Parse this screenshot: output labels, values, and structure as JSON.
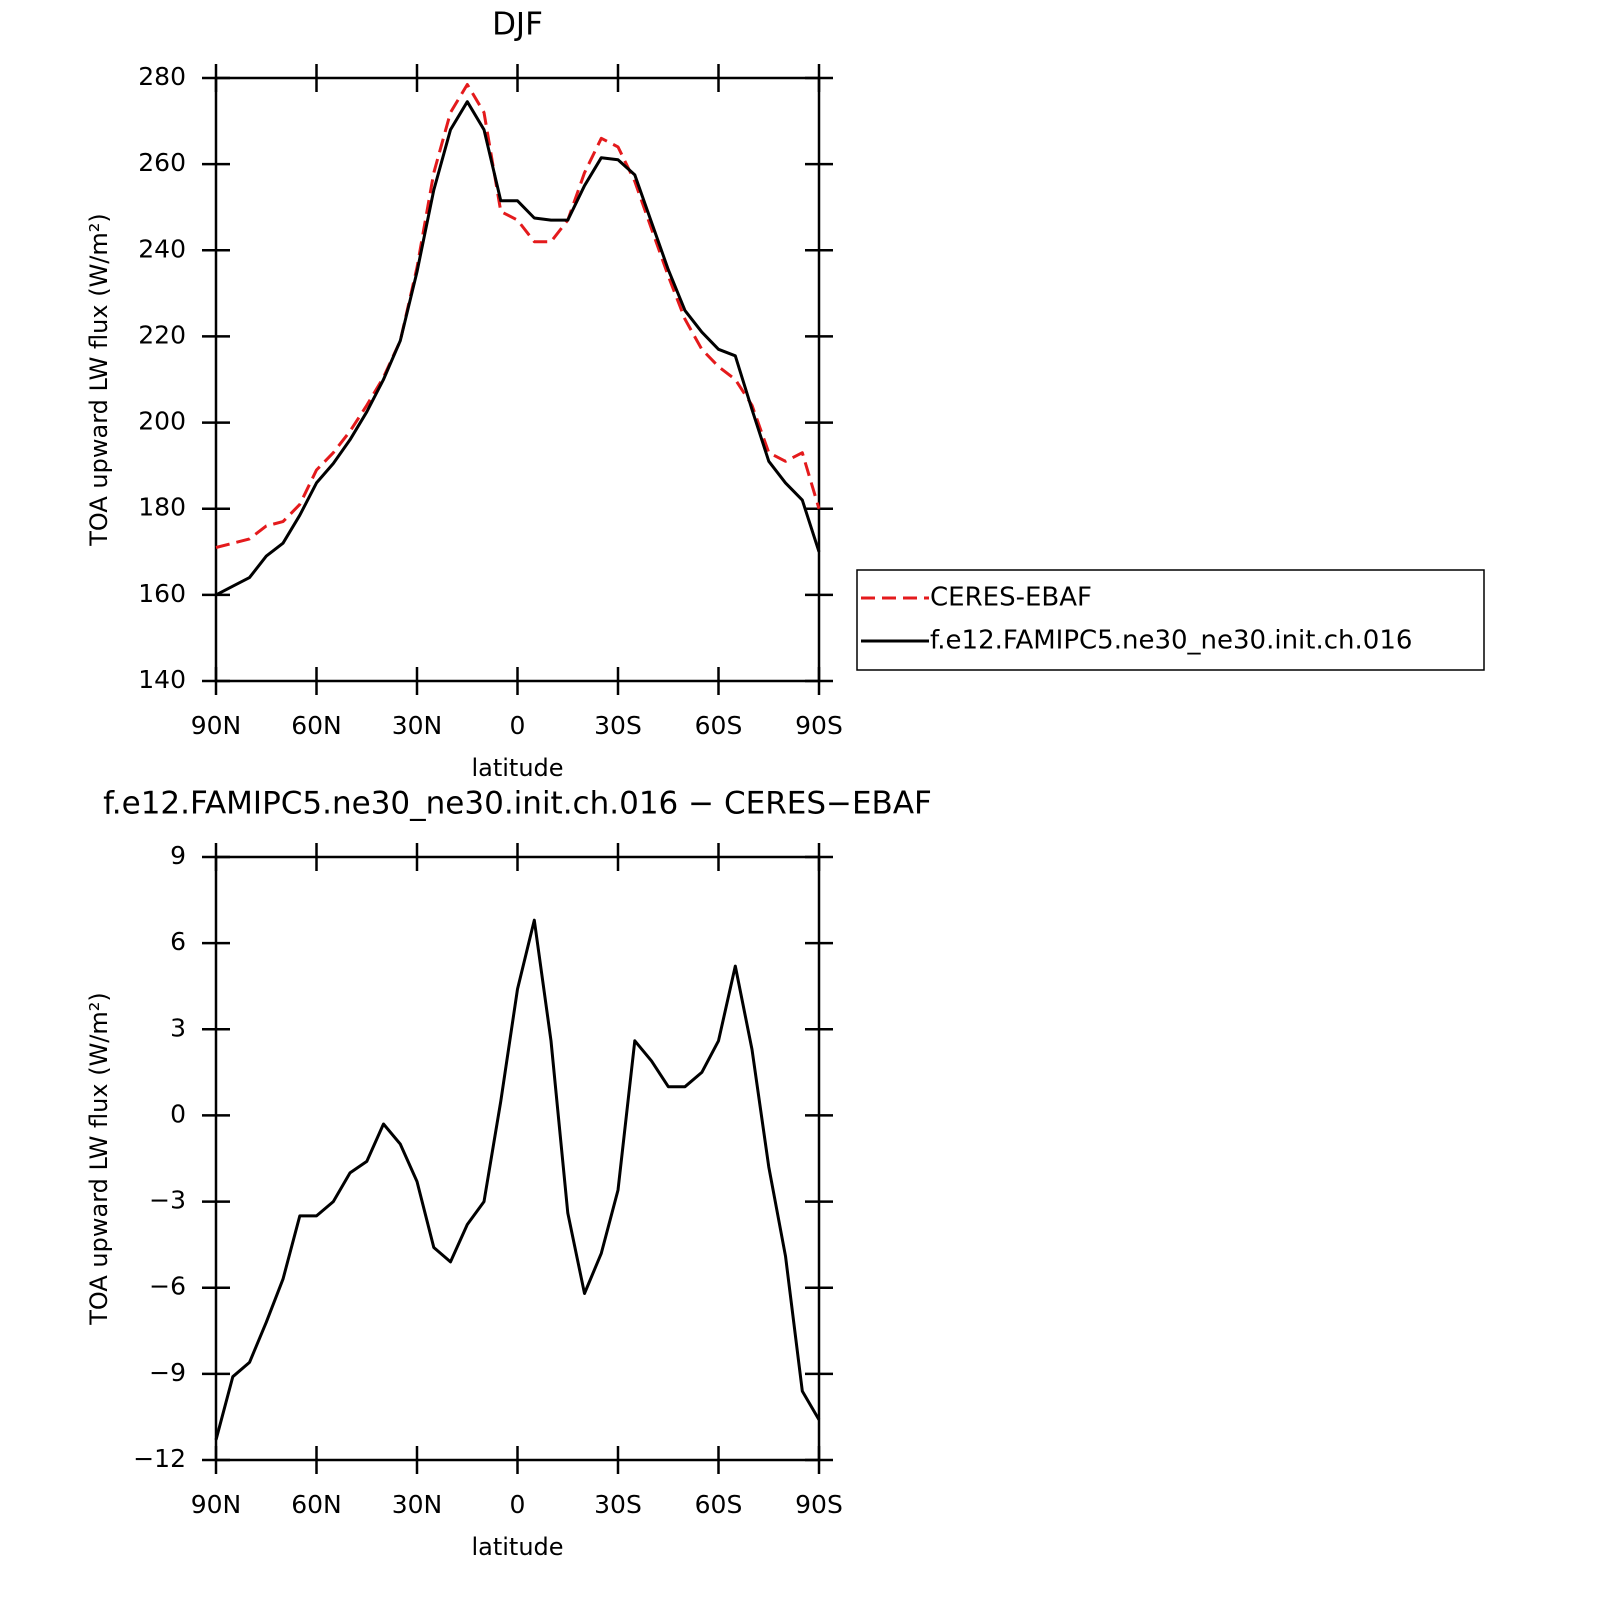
{
  "chart_data": [
    {
      "type": "line",
      "title": "DJF",
      "xlabel": "latitude",
      "ylabel": "TOA upward LW flux (W/m²)",
      "x": [
        90,
        85,
        80,
        75,
        70,
        65,
        60,
        55,
        50,
        45,
        40,
        35,
        30,
        25,
        20,
        15,
        10,
        5,
        0,
        -5,
        -10,
        -15,
        -20,
        -25,
        -30,
        -35,
        -40,
        -45,
        -50,
        -55,
        -60,
        -65,
        -70,
        -75,
        -80,
        -85,
        -90
      ],
      "xlim": [
        90,
        -90
      ],
      "xticks": [
        {
          "value": 90,
          "label": "90N"
        },
        {
          "value": 60,
          "label": "60N"
        },
        {
          "value": 30,
          "label": "30N"
        },
        0,
        {
          "value": -30,
          "label": "30S"
        },
        {
          "value": -60,
          "label": "60S"
        },
        {
          "value": -90,
          "label": "90S"
        }
      ],
      "ylim": [
        140,
        280
      ],
      "yticks": [
        140,
        160,
        180,
        200,
        220,
        240,
        260,
        280
      ],
      "legend": "right",
      "series": [
        {
          "name": "CERES-EBAF",
          "color": "#e41a1c",
          "dashed": true,
          "values": [
            171,
            172,
            173,
            176,
            177,
            181,
            189,
            193,
            198,
            204,
            210.5,
            219,
            236,
            258,
            272,
            278.5,
            272,
            249,
            247,
            242,
            242,
            247,
            258,
            266,
            264,
            256,
            245,
            234,
            224,
            217,
            213,
            210,
            204,
            193,
            191,
            193,
            180
          ]
        },
        {
          "name": "f.e12.FAMIPC5.ne30_ne30.init.ch.016",
          "color": "#000000",
          "dashed": false,
          "values": [
            160,
            162,
            164,
            169,
            172,
            178.5,
            186,
            190.5,
            196,
            202.5,
            210,
            219,
            235,
            254,
            268,
            274.5,
            268,
            251.5,
            251.5,
            247.5,
            247,
            247,
            255,
            261.5,
            261,
            257.5,
            246.5,
            235.5,
            226,
            221,
            217,
            215.5,
            203,
            191,
            186,
            182,
            170
          ]
        }
      ]
    },
    {
      "type": "line",
      "title": "f.e12.FAMIPC5.ne30_ne30.init.ch.016 − CERES−EBAF",
      "xlabel": "latitude",
      "ylabel": "TOA upward LW flux (W/m²)",
      "x": [
        90,
        85,
        80,
        75,
        70,
        65,
        60,
        55,
        50,
        45,
        40,
        35,
        30,
        25,
        20,
        15,
        10,
        5,
        0,
        -5,
        -10,
        -15,
        -20,
        -25,
        -30,
        -35,
        -40,
        -45,
        -50,
        -55,
        -60,
        -65,
        -70,
        -75,
        -80,
        -85,
        -90
      ],
      "xlim": [
        90,
        -90
      ],
      "xticks": [
        {
          "value": 90,
          "label": "90N"
        },
        {
          "value": 60,
          "label": "60N"
        },
        {
          "value": 30,
          "label": "30N"
        },
        0,
        {
          "value": -30,
          "label": "30S"
        },
        {
          "value": -60,
          "label": "60S"
        },
        {
          "value": -90,
          "label": "90S"
        }
      ],
      "ylim": [
        -12,
        9
      ],
      "yticks": [
        {
          "value": -12,
          "label": "−12"
        },
        {
          "value": -9,
          "label": "−9"
        },
        {
          "value": -6,
          "label": "−6"
        },
        {
          "value": -3,
          "label": "−3"
        },
        0,
        3,
        6,
        9
      ],
      "series": [
        {
          "color": "#000000",
          "dashed": false,
          "values": [
            -11.3,
            -9.1,
            -8.6,
            -7.2,
            -5.7,
            -3.5,
            -3.5,
            -3.0,
            -2.0,
            -1.6,
            -0.3,
            -1.0,
            -2.3,
            -4.6,
            -5.1,
            -3.8,
            -3.0,
            0.5,
            4.4,
            6.8,
            2.6,
            -3.4,
            -6.2,
            -4.8,
            -2.6,
            2.6,
            1.9,
            1.0,
            1.0,
            1.5,
            2.6,
            5.2,
            2.3,
            -1.8,
            -4.9,
            -9.6,
            -10.6
          ]
        }
      ]
    }
  ]
}
